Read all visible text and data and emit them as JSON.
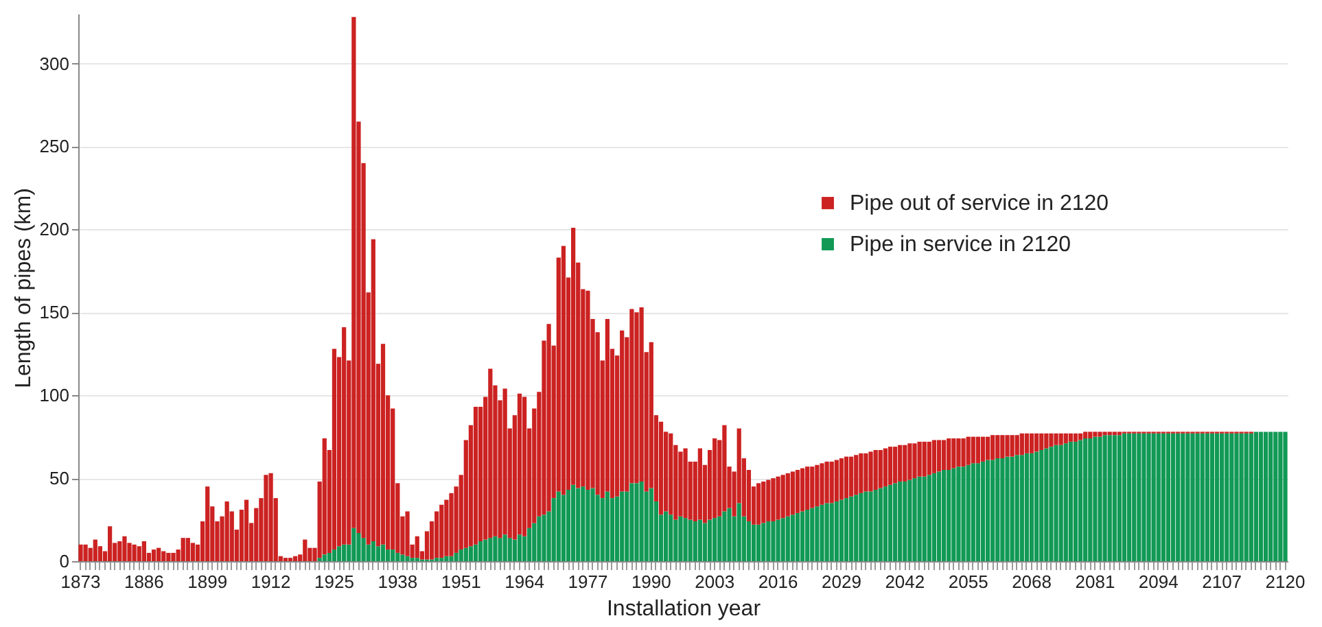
{
  "chart_data": {
    "type": "bar",
    "xlabel": "Installation year",
    "ylabel": "Length of pipes (km)",
    "stacked": true,
    "grid": "y",
    "legend": "top right",
    "ylim": [
      0,
      330
    ],
    "yticks": [
      0,
      50,
      100,
      150,
      200,
      250,
      300
    ],
    "categories": [
      "1873",
      null,
      null,
      null,
      null,
      null,
      null,
      null,
      null,
      null,
      null,
      null,
      null,
      "1886",
      null,
      null,
      null,
      null,
      null,
      null,
      null,
      null,
      null,
      null,
      null,
      null,
      "1899",
      null,
      null,
      null,
      null,
      null,
      null,
      null,
      null,
      null,
      null,
      null,
      null,
      "1912",
      null,
      null,
      null,
      null,
      null,
      null,
      null,
      null,
      null,
      null,
      null,
      null,
      "1925",
      null,
      null,
      null,
      null,
      null,
      null,
      null,
      null,
      null,
      null,
      null,
      null,
      "1938",
      null,
      null,
      null,
      null,
      null,
      null,
      null,
      null,
      null,
      null,
      null,
      null,
      "1951",
      null,
      null,
      null,
      null,
      null,
      null,
      null,
      null,
      null,
      null,
      null,
      null,
      "1964",
      null,
      null,
      null,
      null,
      null,
      null,
      null,
      null,
      null,
      null,
      null,
      null,
      "1977",
      null,
      null,
      null,
      null,
      null,
      null,
      null,
      null,
      null,
      null,
      null,
      null,
      "1990",
      null,
      null,
      null,
      null,
      null,
      null,
      null,
      null,
      null,
      null,
      null,
      null,
      "2003",
      null,
      null,
      null,
      null,
      null,
      null,
      null,
      null,
      null,
      null,
      null,
      null,
      "2016",
      null,
      null,
      null,
      null,
      null,
      null,
      null,
      null,
      null,
      null,
      null,
      null,
      "2029",
      null,
      null,
      null,
      null,
      null,
      null,
      null,
      null,
      null,
      null,
      null,
      null,
      "2042",
      null,
      null,
      null,
      null,
      null,
      null,
      null,
      null,
      null,
      null,
      null,
      null,
      "2055",
      null,
      null,
      null,
      null,
      null,
      null,
      null,
      null,
      null,
      null,
      null,
      null,
      "2068",
      null,
      null,
      null,
      null,
      null,
      null,
      null,
      null,
      null,
      null,
      null,
      null,
      "2081",
      null,
      null,
      null,
      null,
      null,
      null,
      null,
      null,
      null,
      null,
      null,
      null,
      "2094",
      null,
      null,
      null,
      null,
      null,
      null,
      null,
      null,
      null,
      null,
      null,
      null,
      "2107",
      null,
      null,
      null,
      null,
      null,
      null,
      null,
      null,
      null,
      null,
      null,
      null,
      "2120"
    ],
    "series": [
      {
        "name": "Pipe in service in 2120",
        "color": "#119955",
        "values": [
          0,
          0,
          0,
          0,
          0,
          0,
          0,
          0,
          0,
          0,
          0,
          0,
          0,
          0,
          0,
          0,
          0,
          0,
          0,
          0,
          0,
          0,
          0,
          0,
          0,
          0,
          0,
          0,
          0,
          0,
          0,
          0,
          0,
          0,
          0,
          0,
          0,
          0,
          0,
          0,
          0,
          0,
          0,
          0,
          0,
          0,
          0,
          0,
          0,
          2,
          4,
          5,
          7,
          9,
          10,
          10,
          20,
          17,
          14,
          10,
          12,
          9,
          10,
          7,
          7,
          5,
          4,
          3,
          2,
          2,
          1,
          1,
          1,
          2,
          2,
          3,
          3,
          5,
          7,
          8,
          9,
          10,
          12,
          13,
          14,
          15,
          14,
          16,
          14,
          13,
          16,
          15,
          20,
          23,
          27,
          28,
          30,
          38,
          42,
          40,
          43,
          46,
          44,
          45,
          43,
          44,
          40,
          38,
          42,
          38,
          39,
          42,
          42,
          47,
          47,
          48,
          42,
          44,
          36,
          28,
          30,
          28,
          25,
          27,
          26,
          25,
          24,
          25,
          23,
          25,
          26,
          27,
          30,
          32,
          27,
          35,
          27,
          24,
          22,
          22,
          23,
          24,
          24,
          25,
          26,
          27,
          28,
          29,
          30,
          31,
          32,
          33,
          34,
          35,
          35,
          36,
          37,
          38,
          39,
          40,
          41,
          42,
          42,
          43,
          44,
          45,
          46,
          47,
          48,
          48,
          49,
          50,
          51,
          51,
          52,
          53,
          54,
          55,
          55,
          56,
          57,
          57,
          58,
          59,
          59,
          60,
          61,
          61,
          62,
          62,
          63,
          63,
          64,
          64,
          65,
          65,
          66,
          67,
          68,
          69,
          70,
          70,
          71,
          72,
          72,
          73,
          74,
          74,
          75,
          75,
          76,
          76,
          76,
          76,
          77,
          77,
          77,
          77,
          77,
          77,
          77,
          77,
          77,
          77,
          77,
          77,
          77,
          77,
          77,
          77,
          77,
          77,
          77,
          77,
          77,
          77,
          77,
          77,
          77,
          77,
          77,
          78,
          78,
          78,
          78,
          78,
          78,
          78
        ]
      },
      {
        "name": "Pipe out of service in 2120",
        "color": "#cc2222",
        "values": [
          10,
          10,
          8,
          13,
          9,
          6,
          21,
          11,
          12,
          15,
          11,
          10,
          9,
          12,
          5,
          7,
          8,
          6,
          5,
          5,
          7,
          14,
          14,
          11,
          10,
          24,
          45,
          33,
          24,
          27,
          36,
          30,
          19,
          31,
          37,
          23,
          32,
          38,
          52,
          53,
          38,
          3,
          2,
          2,
          3,
          4,
          13,
          8,
          8,
          46,
          70,
          62,
          121,
          114,
          131,
          111,
          308,
          248,
          226,
          152,
          182,
          110,
          121,
          93,
          85,
          42,
          23,
          27,
          8,
          13,
          5,
          17,
          23,
          28,
          32,
          34,
          38,
          40,
          45,
          65,
          73,
          83,
          81,
          86,
          102,
          91,
          83,
          88,
          66,
          75,
          85,
          84,
          60,
          69,
          75,
          105,
          113,
          92,
          141,
          150,
          128,
          155,
          136,
          119,
          120,
          102,
          98,
          83,
          104,
          90,
          85,
          97,
          93,
          105,
          103,
          105,
          84,
          88,
          52,
          56,
          48,
          49,
          45,
          39,
          42,
          35,
          36,
          43,
          35,
          42,
          48,
          46,
          52,
          25,
          27,
          45,
          35,
          31,
          23,
          25,
          25,
          25,
          26,
          26,
          26,
          26,
          26,
          26,
          26,
          26,
          25,
          25,
          25,
          25,
          25,
          25,
          25,
          25,
          24,
          24,
          24,
          23,
          24,
          24,
          23,
          23,
          23,
          22,
          22,
          22,
          22,
          21,
          21,
          21,
          20,
          20,
          19,
          18,
          19,
          18,
          17,
          17,
          17,
          16,
          16,
          15,
          14,
          15,
          14,
          14,
          13,
          13,
          12,
          13,
          12,
          12,
          11,
          10,
          9,
          8,
          7,
          7,
          6,
          5,
          5,
          4,
          4,
          4,
          3,
          3,
          2,
          2,
          2,
          2,
          1,
          1,
          1,
          1,
          1,
          1,
          1,
          1,
          1,
          1,
          1,
          1,
          1,
          1,
          1,
          1,
          1,
          1,
          1,
          1,
          1,
          1,
          1,
          1,
          1,
          1,
          1,
          0,
          0,
          0,
          0,
          0,
          0,
          0
        ]
      }
    ]
  }
}
